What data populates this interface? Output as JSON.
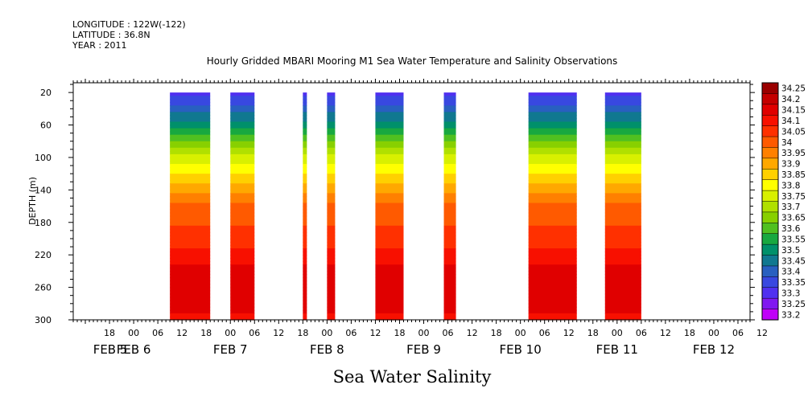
{
  "header": {
    "longitude": "LONGITUDE : 122W(-122)",
    "latitude": "LATITUDE : 36.8N",
    "year": "YEAR : 2011"
  },
  "chart_data": {
    "type": "heatmap",
    "title": "Hourly Gridded MBARI Mooring M1 Sea Water Temperature and Salinity Observations",
    "xlabel": "Sea Water Salinity",
    "ylabel": "DEPTH (m)",
    "y_ticks": [
      20,
      60,
      100,
      140,
      180,
      220,
      260,
      300
    ],
    "ylim": [
      300,
      8
    ],
    "y_inverted": true,
    "x_hour_ticks": [
      "18",
      "00",
      "06",
      "12",
      "18",
      "00",
      "06",
      "12",
      "18",
      "00",
      "06",
      "12",
      "18",
      "00",
      "06",
      "12",
      "18",
      "00",
      "06",
      "12",
      "18",
      "00",
      "06",
      "12",
      "18",
      "00",
      "06",
      "12"
    ],
    "x_day_labels": [
      "FEB 5",
      "FEB 6",
      "FEB 7",
      "FEB 8",
      "FEB 9",
      "FEB 10",
      "FEB 11",
      "FEB 12"
    ],
    "x_range_hours_from_feb5_00": [
      9,
      177
    ],
    "data_segments_hours_from_feb5_00": [
      [
        33,
        43
      ],
      [
        48,
        54
      ],
      [
        66,
        67
      ],
      [
        72,
        74
      ],
      [
        84,
        91
      ],
      [
        101,
        104
      ],
      [
        122,
        134
      ],
      [
        141,
        150
      ]
    ],
    "depth_profile": [
      {
        "depth": 20,
        "salinity": 33.32
      },
      {
        "depth": 40,
        "salinity": 33.42
      },
      {
        "depth": 60,
        "salinity": 33.52
      },
      {
        "depth": 80,
        "salinity": 33.66
      },
      {
        "depth": 100,
        "salinity": 33.76
      },
      {
        "depth": 120,
        "salinity": 33.85
      },
      {
        "depth": 140,
        "salinity": 33.94
      },
      {
        "depth": 160,
        "salinity": 34.02
      },
      {
        "depth": 180,
        "salinity": 34.04
      },
      {
        "depth": 200,
        "salinity": 34.08
      },
      {
        "depth": 220,
        "salinity": 34.12
      },
      {
        "depth": 240,
        "salinity": 34.17
      },
      {
        "depth": 260,
        "salinity": 34.2
      },
      {
        "depth": 280,
        "salinity": 34.16
      },
      {
        "depth": 300,
        "salinity": 34.14
      }
    ],
    "colorbar": {
      "levels": [
        "34.25",
        "34.2",
        "34.15",
        "34.1",
        "34.05",
        "34",
        "33.95",
        "33.9",
        "33.85",
        "33.8",
        "33.75",
        "33.7",
        "33.65",
        "33.6",
        "33.55",
        "33.5",
        "33.45",
        "33.4",
        "33.35",
        "33.3",
        "33.25",
        "33.2"
      ],
      "colors": [
        "#9a0000",
        "#c40000",
        "#e00000",
        "#f81000",
        "#ff3000",
        "#ff5a00",
        "#ff8000",
        "#ffa800",
        "#ffd000",
        "#ffff00",
        "#d8f000",
        "#b0e000",
        "#88d000",
        "#50c020",
        "#18a840",
        "#00906a",
        "#107890",
        "#2860c0",
        "#3848e0",
        "#5030f0",
        "#8018f0",
        "#c000f8"
      ]
    }
  }
}
